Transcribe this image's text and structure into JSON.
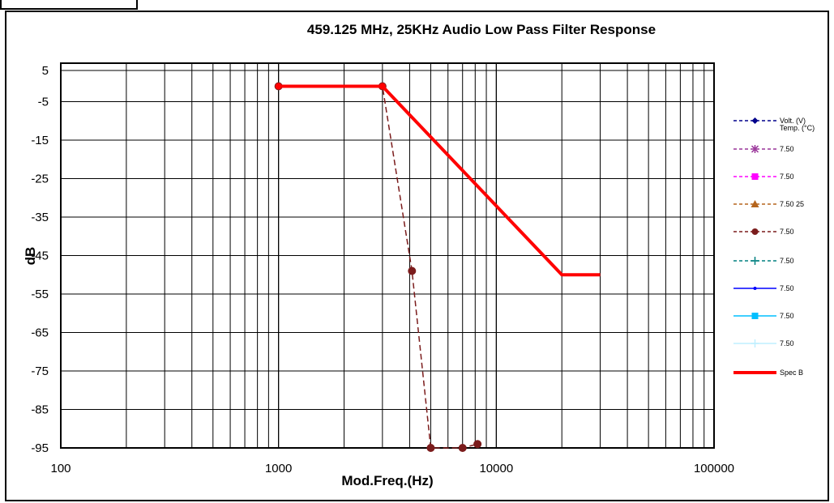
{
  "chart_data": {
    "type": "line",
    "title": "459.125 MHz, 25KHz Audio Low Pass Filter Response",
    "xlabel": "Mod.Freq.(Hz)",
    "ylabel": "dB",
    "x_scale": "log",
    "xlim": [
      100,
      100000
    ],
    "ylim": [
      -95,
      5
    ],
    "x_tick_labels": [
      "100",
      "1000",
      "10000",
      "100000"
    ],
    "y_tick_labels": [
      "5",
      "-5",
      "-15",
      "-25",
      "-35",
      "-45",
      "-55",
      "-65",
      "-75",
      "-85",
      "-95"
    ],
    "grid": true,
    "legend_position": "right",
    "series": [
      {
        "name": "Volt. (V)",
        "color": "#00008b",
        "style": "dashed",
        "marker": "diamond",
        "x": [],
        "y": []
      },
      {
        "name": "7.50",
        "color": "#993399",
        "style": "dashed",
        "marker": "star",
        "x": [],
        "y": []
      },
      {
        "name": "7.50",
        "color": "#ff00ff",
        "style": "dashed",
        "marker": "square",
        "x": [],
        "y": []
      },
      {
        "name": "7.50 25",
        "color": "#b5651d",
        "style": "dashed",
        "marker": "triangle",
        "x": [],
        "y": []
      },
      {
        "name": "7.50",
        "color": "#7b1c1c",
        "style": "dashed",
        "marker": "circle",
        "x": [
          1000,
          3000,
          4100,
          5000,
          7000,
          8200
        ],
        "y": [
          -1,
          -1,
          -49,
          -95,
          -95,
          -94
        ]
      },
      {
        "name": "7.50",
        "color": "#008080",
        "style": "dashed",
        "marker": "plus",
        "x": [],
        "y": []
      },
      {
        "name": "7.50",
        "color": "#0000ff",
        "style": "solid",
        "marker": "dot",
        "x": [],
        "y": []
      },
      {
        "name": "7.50",
        "color": "#00bfff",
        "style": "solid",
        "marker": "square",
        "x": [],
        "y": []
      },
      {
        "name": "7.50",
        "color": "#bfefff",
        "style": "solid",
        "marker": "plus",
        "x": [],
        "y": []
      },
      {
        "name": "Spec B",
        "color": "#ff0000",
        "style": "solid",
        "marker": "none",
        "x": [
          1000,
          3000,
          20000,
          30000
        ],
        "y": [
          -1,
          -1,
          -50,
          -50
        ]
      }
    ],
    "legend_header": "Temp. (°C)"
  }
}
